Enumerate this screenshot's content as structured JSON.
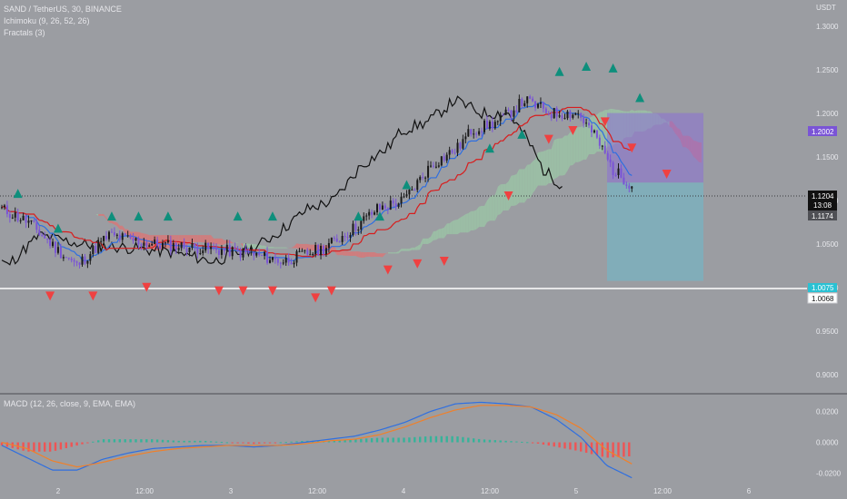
{
  "header": {
    "symbol": "SAND / TetherUS, 30, BINANCE",
    "ichimoku": "Ichimoku (9, 26, 52, 26)",
    "fractals": "Fractals (3)",
    "macd": "MACD (12, 26, close, 9, EMA, EMA)"
  },
  "price_axis": {
    "currency": "USDT",
    "ticks": [
      "1.3000",
      "1.2500",
      "1.2000",
      "1.1500",
      "1.1000",
      "1.0500",
      "1.0000",
      "0.9500",
      "0.9000"
    ]
  },
  "macd_axis": {
    "ticks": [
      "0.0200",
      "0.0000",
      "-0.0200"
    ]
  },
  "time_axis": {
    "labels": [
      "2",
      "12:00",
      "3",
      "12:00",
      "4",
      "12:00",
      "5",
      "12:00",
      "6"
    ]
  },
  "tags": {
    "position_top": "1.2002",
    "last_price": "1.1204",
    "countdown": "13:08",
    "prev_price": "1.1174",
    "stop_level": "1.0075",
    "horizontal_line": "1.0068"
  },
  "colors": {
    "background": "#9b9da2",
    "bull": "#1a1a1a",
    "bear": "#7a54d6",
    "tenkan": "#2f6fe0",
    "kijun": "#d81d1d",
    "chikou": "#111111",
    "fractal_up": "#0e8f7c",
    "fractal_down": "#ef4141",
    "kumo_bear": "#d87878",
    "kumo_bull": "#9bc3a6",
    "macd_line": "#2f6fe0",
    "signal_line": "#f0802a"
  },
  "chart_data": [
    {
      "type": "candlestick",
      "title": "SAND / TetherUS, 30, BINANCE",
      "ylim": [
        0.88,
        1.33
      ],
      "x_labels": [
        "2",
        "12:00",
        "3",
        "12:00",
        "4",
        "12:00",
        "5",
        "12:00",
        "6"
      ],
      "overlays": [
        "Ichimoku (9, 26, 52, 26)",
        "Fractals (3)"
      ],
      "last_price": 1.1204,
      "close_anchors": [
        [
          0,
          1.09
        ],
        [
          10,
          1.075
        ],
        [
          20,
          1.045
        ],
        [
          28,
          1.025
        ],
        [
          40,
          1.06
        ],
        [
          55,
          1.05
        ],
        [
          75,
          1.045
        ],
        [
          90,
          1.04
        ],
        [
          105,
          1.03
        ],
        [
          120,
          1.045
        ],
        [
          130,
          1.065
        ],
        [
          140,
          1.09
        ],
        [
          150,
          1.1
        ],
        [
          160,
          1.14
        ],
        [
          170,
          1.16
        ],
        [
          175,
          1.18
        ],
        [
          185,
          1.19
        ],
        [
          195,
          1.215
        ],
        [
          205,
          1.2
        ],
        [
          215,
          1.2
        ],
        [
          222,
          1.17
        ],
        [
          228,
          1.135
        ],
        [
          234,
          1.12
        ]
      ],
      "position": {
        "entry": 1.1204,
        "target": 1.2002,
        "stop": 1.0075
      },
      "horizontal_line": 1.0068,
      "fractals_up": [
        [
          6,
          1.108
        ],
        [
          21,
          1.068
        ],
        [
          41,
          1.082
        ],
        [
          51,
          1.082
        ],
        [
          62,
          1.082
        ],
        [
          88,
          1.082
        ],
        [
          101,
          1.082
        ],
        [
          133,
          1.082
        ],
        [
          141,
          1.082
        ],
        [
          151,
          1.118
        ],
        [
          182,
          1.16
        ],
        [
          194,
          1.176
        ],
        [
          208,
          1.248
        ],
        [
          218,
          1.254
        ],
        [
          228,
          1.252
        ],
        [
          238,
          1.218
        ]
      ],
      "fractals_down": [
        [
          18,
          0.99
        ],
        [
          34,
          0.99
        ],
        [
          54,
          1.0
        ],
        [
          81,
          0.996
        ],
        [
          90,
          0.996
        ],
        [
          101,
          0.996
        ],
        [
          117,
          0.988
        ],
        [
          123,
          0.996
        ],
        [
          144,
          1.02
        ],
        [
          155,
          1.027
        ],
        [
          165,
          1.03
        ],
        [
          189,
          1.105
        ],
        [
          204,
          1.17
        ],
        [
          213,
          1.18
        ],
        [
          225,
          1.19
        ],
        [
          235,
          1.16
        ],
        [
          248,
          1.13
        ]
      ]
    },
    {
      "type": "bar",
      "title": "MACD (12, 26, close, 9, EMA, EMA)",
      "ylim": [
        -0.025,
        0.028
      ],
      "series": [
        {
          "name": "MACD",
          "values": [
            -0.002,
            -0.01,
            -0.018,
            -0.018,
            -0.011,
            -0.007,
            -0.004,
            -0.003,
            -0.002,
            -0.002,
            -0.003,
            -0.002,
            0.0,
            0.002,
            0.004,
            0.008,
            0.013,
            0.02,
            0.025,
            0.026,
            0.025,
            0.023,
            0.015,
            0.003,
            -0.015,
            -0.023
          ]
        },
        {
          "name": "Signal",
          "values": [
            0.0,
            -0.004,
            -0.012,
            -0.016,
            -0.013,
            -0.009,
            -0.006,
            -0.004,
            -0.003,
            -0.002,
            -0.002,
            -0.002,
            -0.001,
            0.001,
            0.002,
            0.005,
            0.01,
            0.016,
            0.021,
            0.024,
            0.024,
            0.023,
            0.018,
            0.009,
            -0.005,
            -0.014
          ]
        }
      ]
    }
  ]
}
